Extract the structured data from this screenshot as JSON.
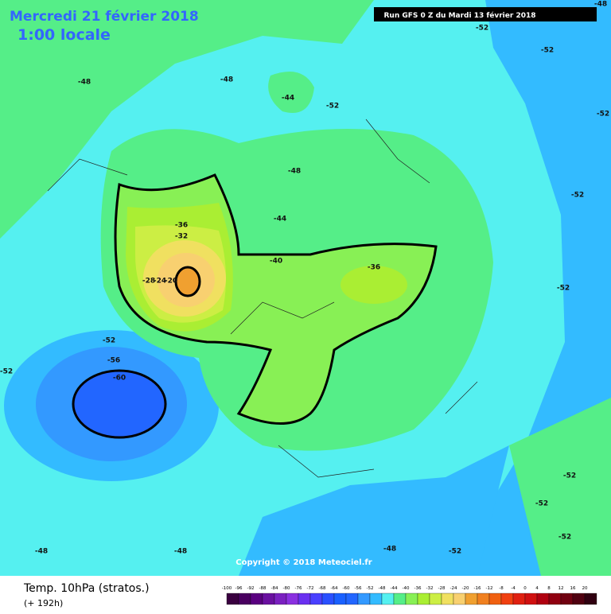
{
  "header": {
    "date": "Mercredi 21 février 2018",
    "time": "1:00 locale",
    "run": "Run GFS 0 Z du Mardi 13 février 2018"
  },
  "footer": {
    "copyright": "Copyright © 2018 Meteociel.fr"
  },
  "legend": {
    "title": "Temp. 10hPa (stratos.)",
    "subtitle": "(+ 192h)",
    "scale": [
      -100,
      -96,
      -92,
      -88,
      -84,
      -80,
      -76,
      -72,
      -68,
      -64,
      -60,
      -56,
      -52,
      -48,
      -44,
      -40,
      -36,
      -32,
      -28,
      -24,
      -20,
      -16,
      -12,
      -8,
      -4,
      0,
      4,
      8,
      12,
      16,
      20
    ],
    "colors": [
      "#3a0040",
      "#4a0060",
      "#5a0080",
      "#6a10a0",
      "#7a20c0",
      "#8a30e0",
      "#6a30f0",
      "#4a40ff",
      "#2a50ff",
      "#1a60ff",
      "#2266ff",
      "#3399ff",
      "#33bbff",
      "#55f0f0",
      "#55ee88",
      "#88f055",
      "#aaee33",
      "#ccee44",
      "#f0e060",
      "#f8d070",
      "#f0a030",
      "#f08020",
      "#f06010",
      "#f04010",
      "#e02010",
      "#d01010",
      "#b00010",
      "#900010",
      "#700010",
      "#500010",
      "#300010"
    ]
  },
  "contour_labels": [
    -48,
    -48,
    -44,
    -52,
    -52,
    -52,
    -48,
    -52,
    -48,
    -44,
    -52,
    -52,
    -40,
    -36,
    -36,
    -32,
    -28,
    -24,
    -20,
    -52,
    -56,
    -60,
    -52,
    -52,
    -52,
    -48,
    -52,
    -52,
    -48,
    -48
  ]
}
